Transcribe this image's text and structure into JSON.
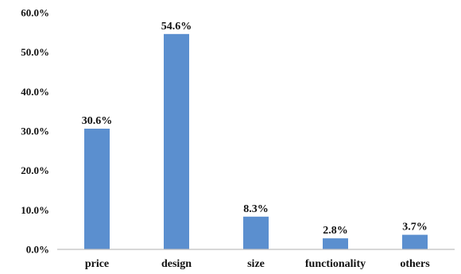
{
  "chart_data": {
    "type": "bar",
    "categories": [
      "price",
      "design",
      "size",
      "functionality",
      "others"
    ],
    "values": [
      30.6,
      54.6,
      8.3,
      2.8,
      3.7
    ],
    "data_labels": [
      "30.6%",
      "54.6%",
      "8.3%",
      "2.8%",
      "3.7%"
    ],
    "yticks": [
      0,
      10,
      20,
      30,
      40,
      50,
      60
    ],
    "ytick_labels": [
      "0.0%",
      "10.0%",
      "20.0%",
      "30.0%",
      "40.0%",
      "50.0%",
      "60.0%"
    ],
    "ylim": [
      0,
      60
    ],
    "title": "",
    "xlabel": "",
    "ylabel": "",
    "grid": false,
    "legend": "none",
    "bar_color": "#5b8fcf"
  }
}
